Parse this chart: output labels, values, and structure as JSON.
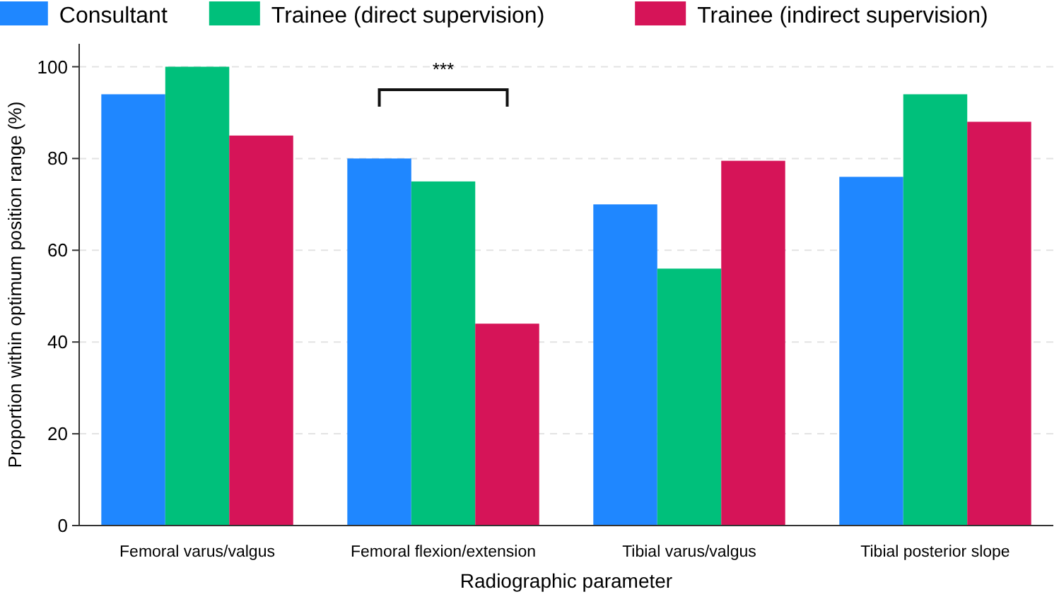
{
  "chart_data": {
    "type": "bar",
    "xlabel": "Radiographic parameter",
    "ylabel": "Proportion within optimum position range (%)",
    "categories": [
      "Femoral varus/valgus",
      "Femoral flexion/extension",
      "Tibial varus/valgus",
      "Tibial posterior slope"
    ],
    "series": [
      {
        "name": "Consultant",
        "color": "#1f87ff",
        "values": [
          94,
          80,
          70,
          76
        ]
      },
      {
        "name": "Trainee (direct supervision)",
        "color": "#00c07b",
        "values": [
          100,
          75,
          56,
          94
        ]
      },
      {
        "name": "Trainee (indirect supervision)",
        "color": "#d61458",
        "values": [
          85,
          44,
          79.5,
          88
        ]
      }
    ],
    "ylim": [
      0,
      105
    ],
    "yticks": [
      0,
      20,
      40,
      60,
      80,
      100
    ],
    "grid": "y",
    "legend": "top",
    "annotations": [
      "***"
    ]
  }
}
